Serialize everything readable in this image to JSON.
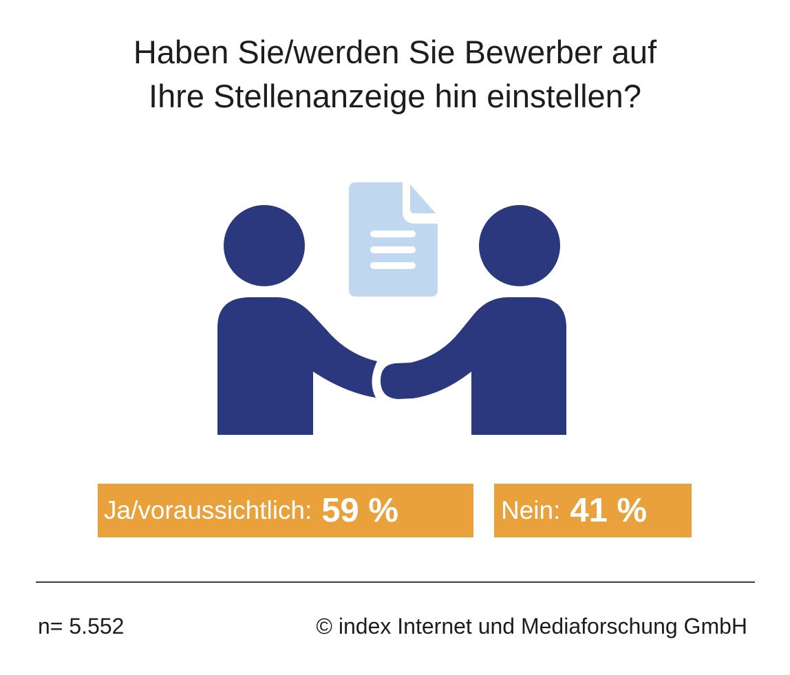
{
  "title": {
    "line1": "Haben Sie/werden Sie Bewerber auf",
    "line2": "Ihre Stellenanzeige hin einstellen?"
  },
  "illustration": {
    "icons": [
      "handshake-people-icon",
      "document-icon"
    ],
    "colors": {
      "people": "#2b387d",
      "document": "#bfd8ef"
    }
  },
  "results": [
    {
      "label": "Ja/voraussichtlich:",
      "value": "59 %"
    },
    {
      "label": "Nein:",
      "value": "41 %"
    }
  ],
  "colors": {
    "badge": "#e9a23b",
    "badge_text": "#ffffff",
    "divider": "#3c3c3b"
  },
  "footer": {
    "sample": "n= 5.552",
    "copyright": "© index Internet und Mediaforschung GmbH"
  }
}
